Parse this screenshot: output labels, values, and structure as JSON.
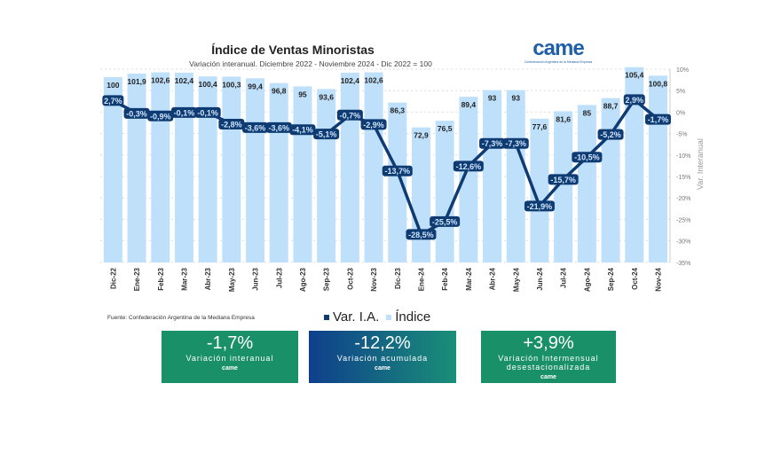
{
  "chart_data": {
    "type": "bar+line",
    "title": "Índice de Ventas Minoristas",
    "subtitle": "Variación interanual. Diciembre 2022 - Noviembre 2024 - Dic 2022 = 100",
    "categories": [
      "Dic-22",
      "Ene-23",
      "Feb-23",
      "Mar-23",
      "Abr-23",
      "May-23",
      "Jun-23",
      "Jul-23",
      "Ago-23",
      "Sep-23",
      "Oct-23",
      "Nov-23",
      "Dic-23",
      "Ene-24",
      "Feb-24",
      "Mar-24",
      "Abr-24",
      "May-24",
      "Jun-24",
      "Jul-24",
      "Ago-24",
      "Sep-24",
      "Oct-24",
      "Nov-24"
    ],
    "series": [
      {
        "name": "Índice",
        "type": "bar",
        "color": "#bfe0fb",
        "values": [
          100,
          101.9,
          102.6,
          102.4,
          100.4,
          100.3,
          99.4,
          96.8,
          95,
          93.6,
          102.4,
          102.6,
          86.3,
          72.9,
          76.5,
          89.4,
          93,
          93,
          77.6,
          81.6,
          85,
          88.7,
          105.4,
          100.8
        ],
        "labels": [
          "100",
          "101,9",
          "102,6",
          "102,4",
          "100,4",
          "100,3",
          "99,4",
          "96,8",
          "95",
          "93,6",
          "102,4",
          "102,6",
          "86,3",
          "72,9",
          "76,5",
          "89,4",
          "93",
          "93",
          "77,6",
          "81,6",
          "85",
          "88,7",
          "105,4",
          "100,8"
        ]
      },
      {
        "name": "Var. I.A.",
        "type": "line",
        "color": "#0f3b73",
        "values": [
          2.7,
          -0.3,
          -0.9,
          -0.1,
          -0.1,
          -2.8,
          -3.6,
          -3.6,
          -4.1,
          -5.1,
          -0.7,
          -2.9,
          -13.7,
          -28.5,
          -25.5,
          -12.6,
          -7.3,
          -7.3,
          -21.9,
          -15.7,
          -10.5,
          -5.2,
          2.9,
          -1.7
        ],
        "labels": [
          "2,7%",
          "-0,3%",
          "-0,9%",
          "-0,1%",
          "-0,1%",
          "-2,8%",
          "-3,6%",
          "-3,6%",
          "-4,1%",
          "-5,1%",
          "-0,7%",
          "-2,9%",
          "-13,7%",
          "-28,5%",
          "-25,5%",
          "-12,6%",
          "-7,3%",
          "-7,3%",
          "-21,9%",
          "-15,7%",
          "-10,5%",
          "-5,2%",
          "2,9%",
          "-1,7%"
        ]
      }
    ],
    "y2label": "Var. Interanual",
    "y2ticks": [
      "10%",
      "5%",
      "0%",
      "-5%",
      "-10%",
      "-15%",
      "-20%",
      "-25%",
      "-30%",
      "-35%"
    ],
    "y2lim": [
      -35,
      10
    ],
    "legend": [
      "Var. I.A.",
      "Índice"
    ],
    "legend_position": "bottom"
  },
  "logo": {
    "text": "came",
    "sub": "Confederación Argentina de la Mediana Empresa"
  },
  "source": "Fuente: Confederación Argentina de la Mediana Empresa",
  "cards": [
    {
      "value": "-1,7%",
      "label": "Variación interanual",
      "brand": "came"
    },
    {
      "value": "-12,2%",
      "label": "Variación acumulada",
      "brand": "came"
    },
    {
      "value": "+3,9%",
      "label": "Variación Intermensual desestacionalizada",
      "brand": "came"
    }
  ]
}
